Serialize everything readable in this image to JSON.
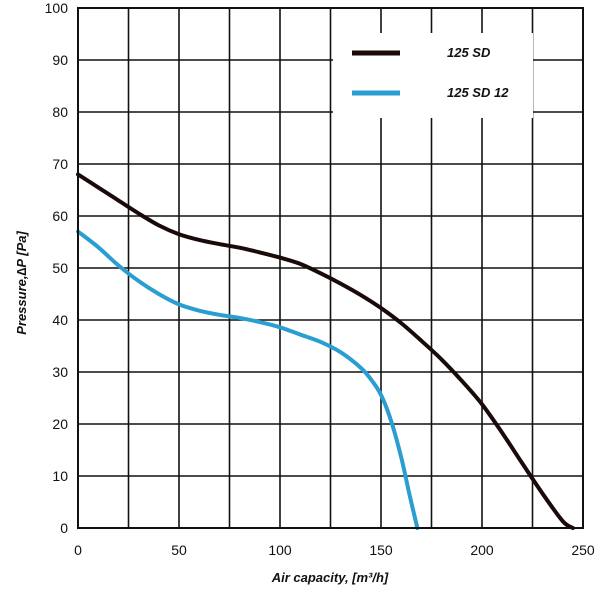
{
  "chart_data": {
    "type": "line",
    "xlabel": "Air capacity, [m³/h]",
    "ylabel": "Pressure,∆P [Pa]",
    "xlim": [
      0,
      250
    ],
    "ylim": [
      0,
      100
    ],
    "x_ticks": [
      0,
      50,
      100,
      150,
      200,
      250
    ],
    "y_ticks": [
      0,
      10,
      20,
      30,
      40,
      50,
      60,
      70,
      80,
      90,
      100
    ],
    "grid": {
      "x_step": 25,
      "y_step": 10
    },
    "legend_position": "top-right",
    "series": [
      {
        "name": "125 SD",
        "color": "#1a0a0a",
        "x": [
          0,
          10,
          20,
          30,
          40,
          50,
          60,
          70,
          80,
          90,
          100,
          110,
          120,
          130,
          140,
          150,
          160,
          170,
          180,
          190,
          200,
          210,
          220,
          230,
          240,
          245
        ],
        "y": [
          68,
          65.5,
          63,
          60.5,
          58.2,
          56.5,
          55.4,
          54.6,
          53.9,
          53,
          52,
          50.8,
          49,
          47,
          44.8,
          42.3,
          39.4,
          36,
          32.4,
          28.3,
          23.8,
          18.3,
          12.4,
          6.6,
          1.3,
          0
        ]
      },
      {
        "name": "125 SD 12",
        "color": "#2a9dd1",
        "x": [
          0,
          10,
          20,
          30,
          40,
          50,
          60,
          70,
          80,
          90,
          100,
          110,
          120,
          130,
          140,
          145,
          150,
          155,
          160,
          164,
          168
        ],
        "y": [
          57,
          54,
          50.5,
          47.5,
          45,
          43,
          41.8,
          41,
          40.4,
          39.6,
          38.6,
          37.2,
          35.8,
          33.8,
          30.8,
          28.6,
          25.6,
          20.6,
          13.6,
          6.6,
          0
        ]
      }
    ]
  }
}
